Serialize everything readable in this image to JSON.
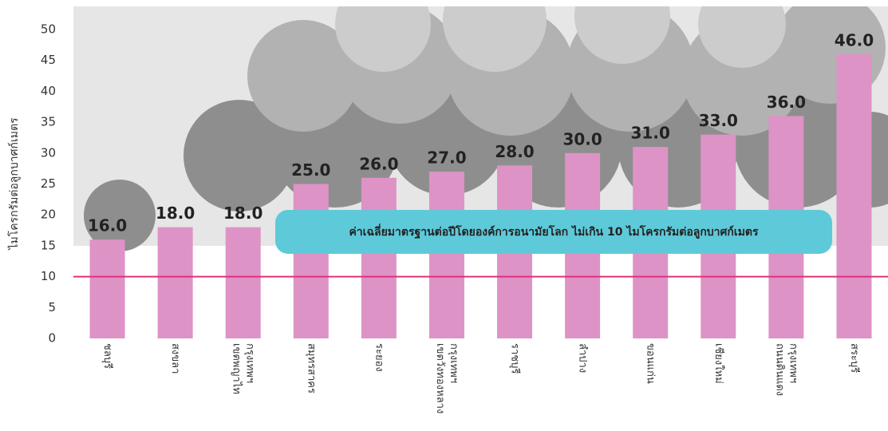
{
  "chart_data": {
    "type": "bar",
    "y_label": "ไมโครกรัมต่อลูกบาศก์เมตร",
    "categories": [
      "ชลบุรี",
      "สงขลา",
      "เขตพญาไท กรุงเทพฯ",
      "สมุทรสาคร",
      "ระยอง",
      "เขตวังทองหลาง กรุงเทพฯ",
      "ราชบุรี",
      "ลำปาง",
      "ขอนแก่น",
      "เชียงใหม่",
      "ถนนดินแดง กรุงเทพฯ",
      "สระบุรี"
    ],
    "values": [
      16,
      18,
      18,
      25,
      26,
      27,
      28,
      30,
      31,
      33,
      36,
      46
    ],
    "value_labels": [
      "16.0",
      "18.0",
      "18.0",
      "25.0",
      "26.0",
      "27.0",
      "28.0",
      "30.0",
      "31.0",
      "33.0",
      "36.0",
      "46.0"
    ],
    "color": "#dd93c5",
    "ylim": [
      0,
      50
    ],
    "yticks": [
      0,
      5,
      10,
      15,
      20,
      25,
      30,
      35,
      40,
      45,
      50
    ],
    "reference_line": {
      "value": 10,
      "color": "#e0307a"
    },
    "annotation": "ค่าเฉลี่ยมาตรฐานต่อปีโดยองค์การอนามัยโลก ไม่เกิน 10 ไมโครกรัมต่อลูกบาศก์เมตร"
  }
}
